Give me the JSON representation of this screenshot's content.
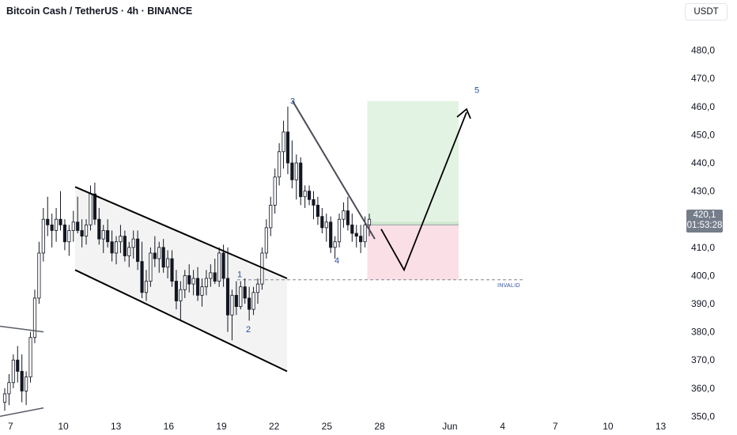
{
  "header": {
    "title": "Bitcoin Cash / TetherUS · 4h · BINANCE",
    "currency": "USDT"
  },
  "price_tag": {
    "price": "420,1",
    "countdown": "01:53:28"
  },
  "chart_data": {
    "type": "candlestick",
    "title": "Bitcoin Cash / TetherUS · 4h · BINANCE",
    "quote_currency": "USDT",
    "current_price": 420.1,
    "y_ticks": [
      "480,0",
      "470,0",
      "460,0",
      "450,0",
      "440,0",
      "430,0",
      "420,0",
      "410,0",
      "400,0",
      "390,0",
      "380,0",
      "370,0",
      "360,0",
      "350,0"
    ],
    "y_tick_values": [
      480,
      470,
      460,
      450,
      440,
      430,
      420,
      410,
      400,
      390,
      380,
      370,
      360,
      350
    ],
    "x_ticks": [
      "7",
      "10",
      "13",
      "16",
      "19",
      "22",
      "25",
      "28",
      "Jun",
      "4",
      "7",
      "10",
      "13"
    ],
    "x_tick_days": [
      7,
      10,
      13,
      16,
      19,
      22,
      25,
      28,
      32,
      35,
      38,
      41,
      44
    ],
    "ylim": [
      349,
      490
    ],
    "xlim_days": [
      6.4,
      45.1
    ],
    "wave_labels": [
      {
        "label": "1",
        "day": 20.1,
        "price": 400.5
      },
      {
        "label": "2",
        "day": 20.6,
        "price": 381
      },
      {
        "label": "3",
        "day": 22.9,
        "price": 462
      },
      {
        "label": "4",
        "day": 25.5,
        "price": 405.5
      },
      {
        "label": "5",
        "day": 33.5,
        "price": 466
      }
    ],
    "annotations": {
      "invalid_label": "INVALID",
      "invalid_level": 398.5,
      "long_position": {
        "entry": 418,
        "target": 462,
        "stop": 398.5,
        "from_day": 27.3,
        "to_day": 32.5
      },
      "projection_path": [
        [
          27.4,
          416.5
        ],
        [
          28.8,
          402
        ],
        [
          33.1,
          458
        ]
      ],
      "descending_channel": {
        "upper": [
          [
            11.0,
            431.5
          ],
          [
            24.3,
            399
          ]
        ],
        "lower": [
          [
            11.0,
            402
          ],
          [
            24.3,
            366
          ]
        ]
      },
      "wave4_trendline": [
        [
          22.9,
          462
        ],
        [
          27.4,
          413
        ]
      ],
      "triangle_lines": {
        "upper": [
          [
            6.4,
            382
          ],
          [
            8.8,
            380
          ]
        ],
        "lower": [
          [
            6.4,
            350
          ],
          [
            8.8,
            353
          ]
        ]
      }
    },
    "candles": [
      [
        355,
        360,
        352,
        358
      ],
      [
        358,
        365,
        354,
        362
      ],
      [
        362,
        372,
        360,
        370
      ],
      [
        370,
        375,
        362,
        366
      ],
      [
        366,
        372,
        355,
        359
      ],
      [
        359,
        366,
        354,
        364
      ],
      [
        364,
        380,
        362,
        378
      ],
      [
        378,
        395,
        376,
        392
      ],
      [
        392,
        412,
        390,
        408
      ],
      [
        408,
        424,
        405,
        420
      ],
      [
        420,
        428,
        414,
        418
      ],
      [
        418,
        422,
        410,
        416
      ],
      [
        416,
        424,
        412,
        420
      ],
      [
        420,
        430,
        416,
        418
      ],
      [
        418,
        420,
        409,
        412
      ],
      [
        412,
        418,
        407,
        416
      ],
      [
        416,
        423,
        412,
        419
      ],
      [
        419,
        428,
        415,
        416
      ],
      [
        416,
        420,
        410,
        414
      ],
      [
        414,
        420,
        411,
        418
      ],
      [
        418,
        432,
        416,
        429
      ],
      [
        429,
        433,
        418,
        420
      ],
      [
        420,
        424,
        411,
        413
      ],
      [
        413,
        418,
        408,
        416
      ],
      [
        416,
        420,
        410,
        412
      ],
      [
        412,
        416,
        405,
        408
      ],
      [
        408,
        414,
        404,
        412
      ],
      [
        412,
        418,
        408,
        414
      ],
      [
        414,
        416,
        405,
        407
      ],
      [
        407,
        412,
        403,
        410
      ],
      [
        410,
        416,
        406,
        413
      ],
      [
        413,
        416,
        402,
        405
      ],
      [
        405,
        412,
        392,
        394
      ],
      [
        394,
        402,
        391,
        398
      ],
      [
        398,
        410,
        396,
        408
      ],
      [
        408,
        414,
        403,
        406
      ],
      [
        406,
        412,
        401,
        410
      ],
      [
        410,
        413,
        401,
        403
      ],
      [
        403,
        409,
        399,
        406
      ],
      [
        406,
        409,
        396,
        398
      ],
      [
        398,
        402,
        388,
        391
      ],
      [
        391,
        398,
        384,
        395
      ],
      [
        395,
        402,
        392,
        400
      ],
      [
        400,
        404,
        394,
        397
      ],
      [
        397,
        402,
        393,
        399
      ],
      [
        399,
        403,
        391,
        393
      ],
      [
        393,
        399,
        389,
        396
      ],
      [
        396,
        402,
        393,
        399
      ],
      [
        399,
        404,
        396,
        401
      ],
      [
        401,
        406,
        397,
        398
      ],
      [
        398,
        410,
        396,
        408
      ],
      [
        408,
        411,
        396,
        399
      ],
      [
        399,
        410,
        380,
        386
      ],
      [
        386,
        395,
        377,
        393
      ],
      [
        393,
        398,
        386,
        389
      ],
      [
        389,
        398,
        388,
        396
      ],
      [
        396,
        399,
        390,
        392
      ],
      [
        392,
        396,
        384,
        388
      ],
      [
        388,
        396,
        386,
        394
      ],
      [
        394,
        399,
        390,
        397
      ],
      [
        397,
        410,
        395,
        408
      ],
      [
        408,
        420,
        406,
        417
      ],
      [
        417,
        428,
        414,
        425
      ],
      [
        425,
        438,
        422,
        435
      ],
      [
        435,
        447,
        432,
        444
      ],
      [
        444,
        455,
        438,
        451
      ],
      [
        451,
        460,
        436,
        440
      ],
      [
        440,
        448,
        431,
        434
      ],
      [
        434,
        443,
        427,
        440
      ],
      [
        440,
        442,
        425,
        428
      ],
      [
        428,
        432,
        424,
        430
      ],
      [
        430,
        432,
        425,
        427
      ],
      [
        427,
        430,
        420,
        425
      ],
      [
        425,
        428,
        418,
        421
      ],
      [
        421,
        424,
        415,
        417
      ],
      [
        417,
        422,
        412,
        419
      ],
      [
        419,
        421,
        408,
        410
      ],
      [
        410,
        414,
        406,
        412
      ],
      [
        412,
        422,
        410,
        420
      ],
      [
        420,
        426,
        417,
        423
      ],
      [
        423,
        428,
        416,
        418
      ],
      [
        418,
        422,
        412,
        415
      ],
      [
        415,
        418,
        410,
        414
      ],
      [
        414,
        418,
        408,
        412
      ],
      [
        412,
        421,
        410,
        418
      ],
      [
        418,
        422,
        414,
        420
      ]
    ]
  }
}
